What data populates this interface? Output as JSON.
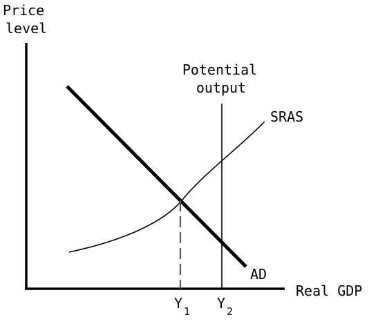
{
  "axes": {
    "y_label_line1": "Price",
    "y_label_line2": "level",
    "x_label": "Real GDP"
  },
  "curves": {
    "potential_line1": "Potential",
    "potential_line2": "output",
    "sras": "SRAS",
    "ad": "AD"
  },
  "ticks": {
    "y1_main": "Y",
    "y1_sub": "1",
    "y2_main": "Y",
    "y2_sub": "2"
  },
  "colors": {
    "ink": "#000000",
    "background": "#ffffff",
    "dashed_guide": "#555555"
  }
}
